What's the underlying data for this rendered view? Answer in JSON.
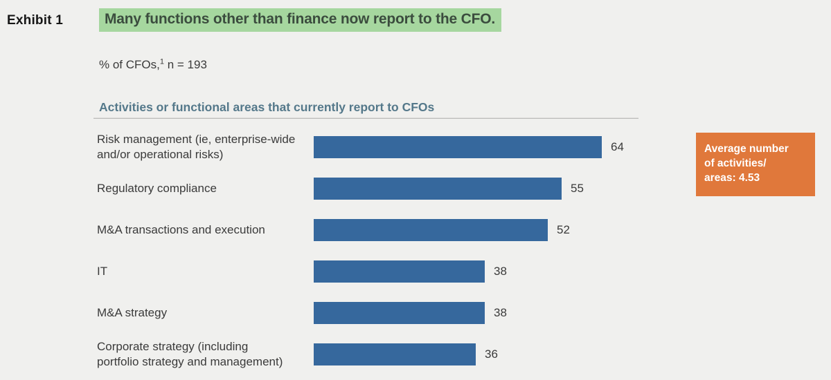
{
  "exhibit": {
    "label": "Exhibit 1"
  },
  "header": {
    "title": "Many functions other than finance now report to the CFO.",
    "subtitle": {
      "pre": "% of CFOs,",
      "sup": "1",
      "post": " n = 193"
    }
  },
  "section": {
    "heading": "Activities or functional areas that currently report to CFOs"
  },
  "annotation": {
    "text": "Average number of activities/areas: 4.53",
    "lines": [
      "Average number",
      "of activities/",
      "areas: 4.53"
    ]
  },
  "colors": {
    "background": "#f0f0ee",
    "bar": "#36689d",
    "title_highlight": "#a6d79f",
    "title_text": "#3b4c3e",
    "annotation_bg": "#e0783b",
    "section_heading": "#54788a"
  },
  "chart_data": {
    "type": "bar",
    "orientation": "horizontal",
    "title": "Many functions other than finance now report to the CFO.",
    "subtitle": "% of CFOs,¹ n = 193",
    "axis_label": "Activities or functional areas that currently report to CFOs",
    "categories": [
      "Risk management (ie, enterprise-wide and/or operational risks)",
      "Regulatory compliance",
      "M&A transactions and execution",
      "IT",
      "M&A strategy",
      "Corporate strategy (including portfolio strategy and management)"
    ],
    "values": [
      64,
      55,
      52,
      38,
      38,
      36
    ],
    "xlim": [
      0,
      64
    ],
    "grid": false,
    "legend": false,
    "annotation": "Average number of activities/areas: 4.53",
    "rows": [
      {
        "label_lines": [
          "Risk management (ie, enterprise-wide",
          "and/or operational risks)"
        ],
        "value": 64
      },
      {
        "label_lines": [
          "Regulatory compliance"
        ],
        "value": 55
      },
      {
        "label_lines": [
          "M&A transactions and execution"
        ],
        "value": 52
      },
      {
        "label_lines": [
          "IT"
        ],
        "value": 38
      },
      {
        "label_lines": [
          "M&A strategy"
        ],
        "value": 38
      },
      {
        "label_lines": [
          "Corporate strategy (including",
          "portfolio strategy and management)"
        ],
        "value": 36
      }
    ]
  }
}
